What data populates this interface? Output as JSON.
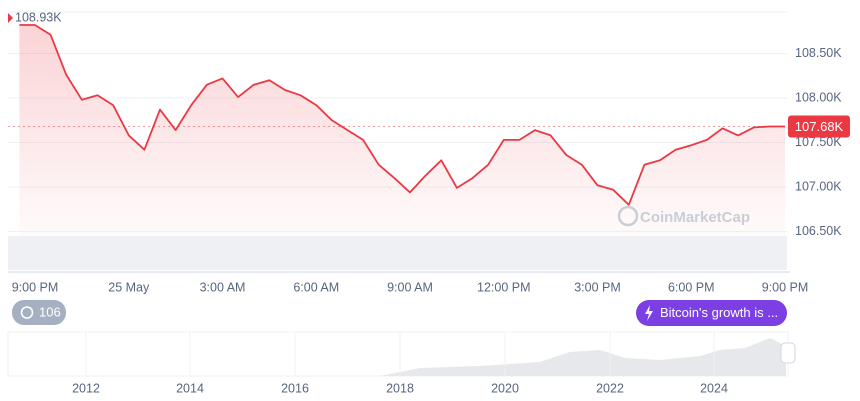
{
  "chart_data": {
    "type": "line",
    "categories": [
      null,
      "9:00 PM",
      null,
      null,
      null,
      null,
      null,
      "25 May",
      null,
      null,
      null,
      null,
      null,
      "3:00 AM",
      null,
      null,
      null,
      null,
      null,
      "6:00 AM",
      null,
      null,
      null,
      null,
      null,
      "9:00 AM",
      null,
      null,
      null,
      null,
      null,
      "12:00 PM",
      null,
      null,
      null,
      null,
      null,
      "3:00 PM",
      null,
      null,
      null,
      null,
      null,
      "6:00 PM",
      null,
      null,
      null,
      null,
      null,
      "9:00 PM"
    ],
    "values": [
      108.82,
      108.82,
      108.71,
      108.26,
      107.98,
      108.03,
      107.92,
      107.58,
      107.42,
      107.87,
      107.64,
      107.92,
      108.15,
      108.22,
      108.01,
      108.15,
      108.2,
      108.09,
      108.03,
      107.92,
      107.75,
      107.64,
      107.53,
      107.25,
      107.1,
      106.94,
      107.13,
      107.3,
      106.99,
      107.1,
      107.25,
      107.53,
      107.53,
      107.64,
      107.58,
      107.36,
      107.25,
      107.02,
      106.97,
      106.8,
      107.25,
      107.3,
      107.42,
      107.47,
      107.53,
      107.66,
      107.58,
      107.67,
      107.68,
      107.68
    ],
    "color": "#ea3943",
    "ylim": [
      106.45,
      109.0
    ],
    "yticks": [
      {
        "value": 106.5,
        "label": "106.50K"
      },
      {
        "value": 107.0,
        "label": "107.00K"
      },
      {
        "value": 107.5,
        "label": "107.50K"
      },
      {
        "value": 108.0,
        "label": "108.00K"
      },
      {
        "value": 108.5,
        "label": "108.50K"
      }
    ],
    "grid": true,
    "high_label": "108.93K",
    "current_label": "107.68K",
    "watermark": "CoinMarketCap"
  },
  "navigator": {
    "years": [
      "2012",
      "2014",
      "2016",
      "2018",
      "2020",
      "2022",
      "2024"
    ]
  },
  "badges": {
    "history": "106",
    "news": "Bitcoin's growth is ..."
  }
}
